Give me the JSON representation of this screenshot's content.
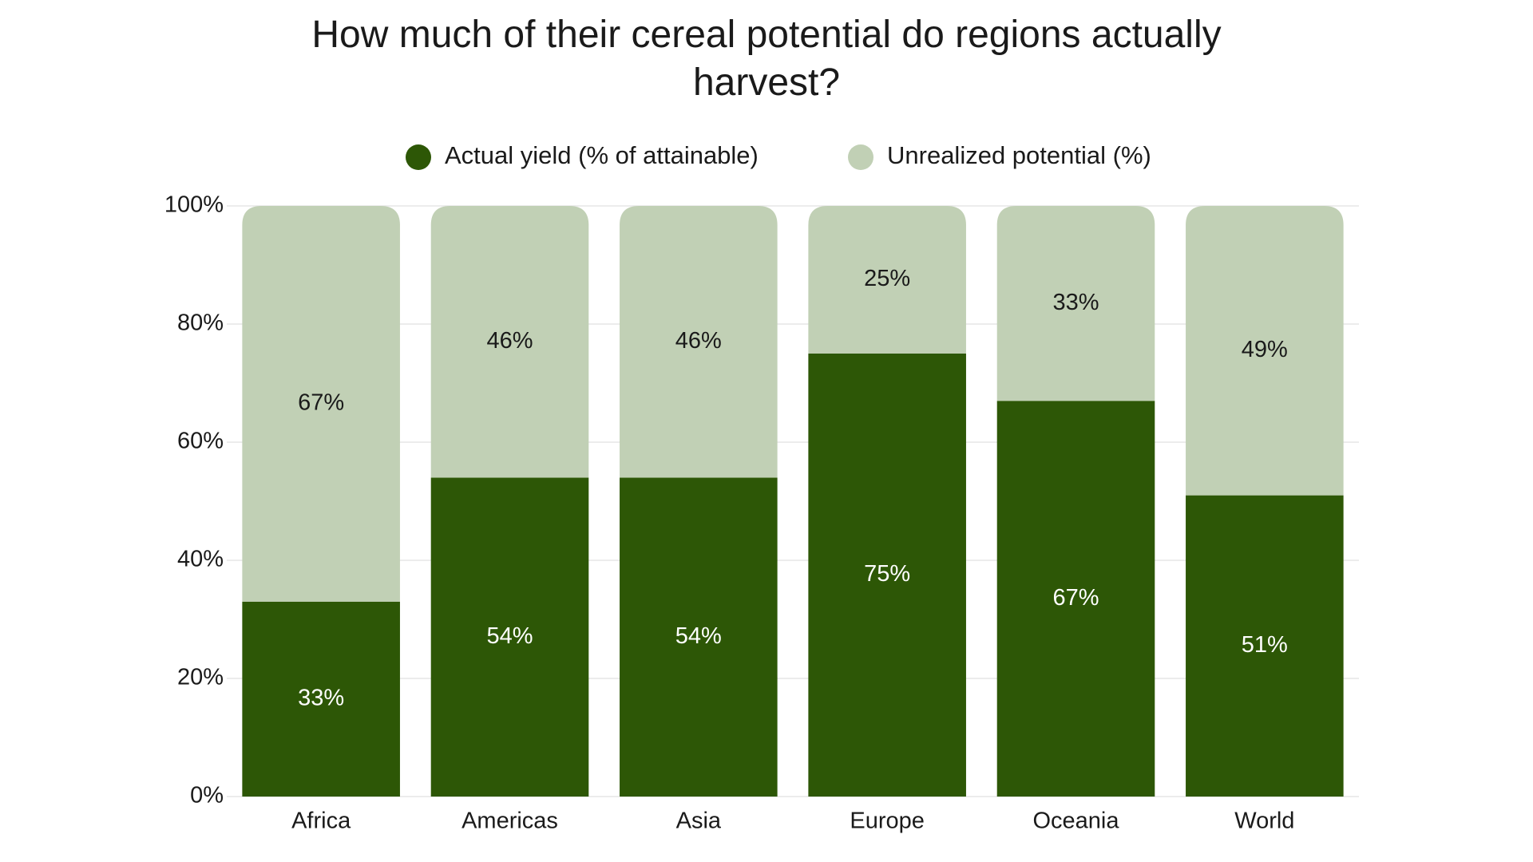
{
  "chart_data": {
    "type": "stacked_bar",
    "title": "How much of their cereal potential do regions actually harvest?",
    "categories": [
      "Africa",
      "Americas",
      "Asia",
      "Europe",
      "Oceania",
      "World"
    ],
    "series": [
      {
        "name": "Actual yield (% of attainable)",
        "color": "#2d5706",
        "label_color": "#ffffff",
        "values": [
          33,
          54,
          54,
          75,
          67,
          51
        ],
        "value_labels": [
          "33%",
          "54%",
          "54%",
          "75%",
          "67%",
          "51%"
        ]
      },
      {
        "name": "Unrealized potential (%)",
        "color": "#c1d0b5",
        "label_color": "#1a1a1a",
        "values": [
          67,
          46,
          46,
          25,
          33,
          49
        ],
        "value_labels": [
          "67%",
          "46%",
          "46%",
          "25%",
          "33%",
          "49%"
        ]
      }
    ],
    "ylim": [
      0,
      100
    ],
    "yticks": [
      {
        "value": 0,
        "label": "0%"
      },
      {
        "value": 20,
        "label": "20%"
      },
      {
        "value": 40,
        "label": "40%"
      },
      {
        "value": 60,
        "label": "60%"
      },
      {
        "value": 80,
        "label": "80%"
      },
      {
        "value": 100,
        "label": "100%"
      }
    ],
    "grid": true
  }
}
